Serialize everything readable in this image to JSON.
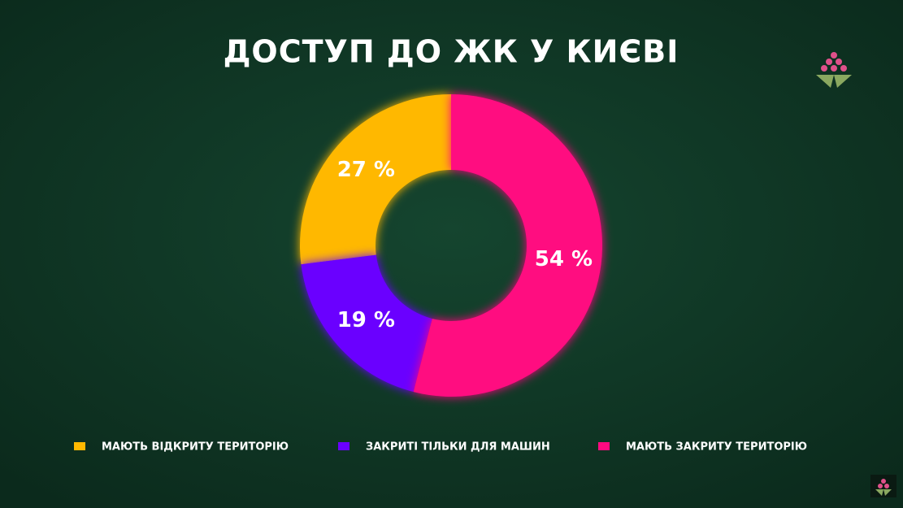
{
  "chart_data": {
    "type": "donut",
    "title": "ДОСТУП ДО ЖК У КИЄВІ",
    "categories": [
      "МАЮТЬ ВІДКРИТУ ТЕРИТОРІЮ",
      "ЗАКРИТІ ТІЛЬКИ ДЛЯ МАШИН",
      "МАЮТЬ ЗАКРИТУ ТЕРИТОРІЮ"
    ],
    "values": [
      27,
      19,
      54
    ],
    "value_labels": [
      "27 %",
      "19 %",
      "54 %"
    ],
    "colors": [
      "#ffb800",
      "#6a00ff",
      "#ff0a80"
    ]
  }
}
